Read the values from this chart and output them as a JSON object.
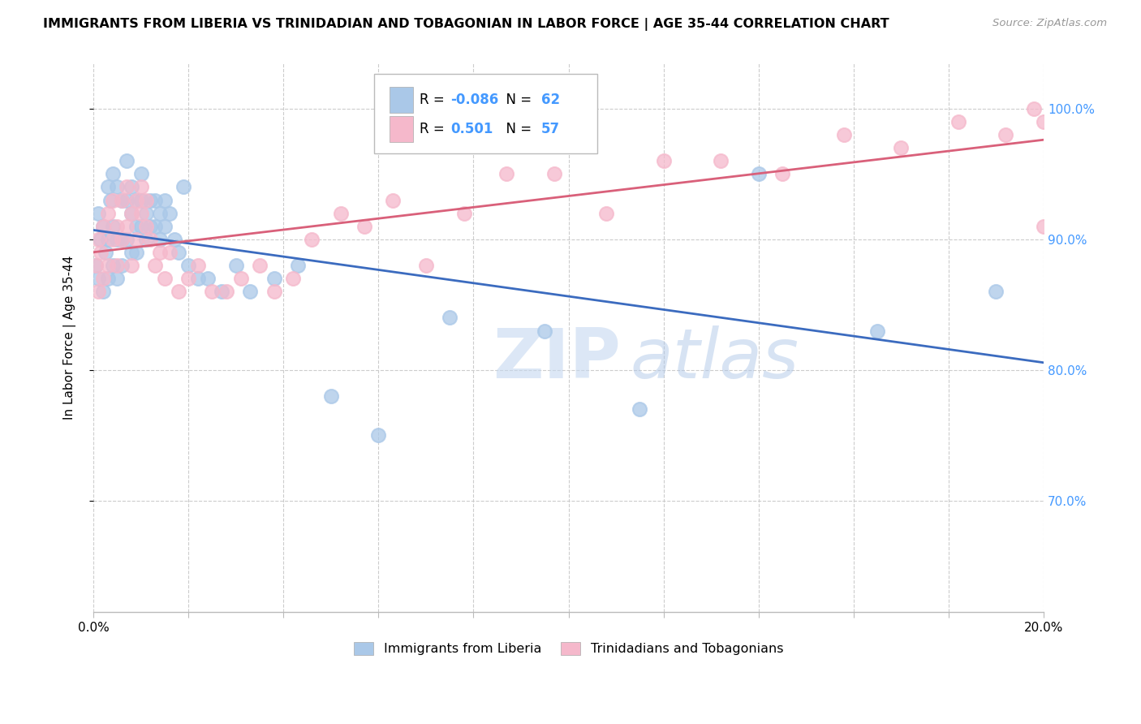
{
  "title": "IMMIGRANTS FROM LIBERIA VS TRINIDADIAN AND TOBAGONIAN IN LABOR FORCE | AGE 35-44 CORRELATION CHART",
  "source": "Source: ZipAtlas.com",
  "ylabel": "In Labor Force | Age 35-44",
  "xlim": [
    0.0,
    0.2
  ],
  "ylim": [
    0.615,
    1.035
  ],
  "yticks": [
    0.7,
    0.8,
    0.9,
    1.0
  ],
  "ytick_labels": [
    "70.0%",
    "80.0%",
    "90.0%",
    "100.0%"
  ],
  "xtick_positions": [
    0.0,
    0.02,
    0.04,
    0.06,
    0.08,
    0.1,
    0.12,
    0.14,
    0.16,
    0.18,
    0.2
  ],
  "xtick_labels": [
    "0.0%",
    "",
    "",
    "",
    "",
    "",
    "",
    "",
    "",
    "",
    "20.0%"
  ],
  "liberia_R": "-0.086",
  "liberia_N": "62",
  "trinidad_R": "0.501",
  "trinidad_N": "57",
  "legend_labels": [
    "Immigrants from Liberia",
    "Trinidadians and Tobagonians"
  ],
  "liberia_color": "#aac8e8",
  "trinidad_color": "#f5b8cb",
  "liberia_line_color": "#3b6bbf",
  "trinidad_line_color": "#d9607a",
  "watermark_zip": "ZIP",
  "watermark_atlas": "atlas",
  "liberia_scatter_x": [
    0.0005,
    0.001,
    0.001,
    0.0015,
    0.002,
    0.002,
    0.0025,
    0.003,
    0.003,
    0.003,
    0.0035,
    0.004,
    0.004,
    0.004,
    0.005,
    0.005,
    0.005,
    0.006,
    0.006,
    0.006,
    0.007,
    0.007,
    0.007,
    0.008,
    0.008,
    0.008,
    0.009,
    0.009,
    0.009,
    0.01,
    0.01,
    0.01,
    0.011,
    0.011,
    0.012,
    0.012,
    0.013,
    0.013,
    0.014,
    0.014,
    0.015,
    0.015,
    0.016,
    0.017,
    0.018,
    0.019,
    0.02,
    0.022,
    0.024,
    0.027,
    0.03,
    0.033,
    0.038,
    0.043,
    0.05,
    0.06,
    0.075,
    0.095,
    0.115,
    0.14,
    0.165,
    0.19
  ],
  "liberia_scatter_y": [
    0.88,
    0.92,
    0.87,
    0.9,
    0.91,
    0.86,
    0.89,
    0.94,
    0.9,
    0.87,
    0.93,
    0.95,
    0.91,
    0.88,
    0.94,
    0.9,
    0.87,
    0.93,
    0.9,
    0.88,
    0.96,
    0.93,
    0.9,
    0.94,
    0.92,
    0.89,
    0.93,
    0.91,
    0.89,
    0.95,
    0.93,
    0.91,
    0.92,
    0.9,
    0.93,
    0.91,
    0.93,
    0.91,
    0.92,
    0.9,
    0.93,
    0.91,
    0.92,
    0.9,
    0.89,
    0.94,
    0.88,
    0.87,
    0.87,
    0.86,
    0.88,
    0.86,
    0.87,
    0.88,
    0.78,
    0.75,
    0.84,
    0.83,
    0.77,
    0.95,
    0.83,
    0.86
  ],
  "trinidad_scatter_x": [
    0.0005,
    0.001,
    0.001,
    0.0015,
    0.002,
    0.002,
    0.003,
    0.003,
    0.004,
    0.004,
    0.005,
    0.005,
    0.006,
    0.006,
    0.007,
    0.007,
    0.008,
    0.008,
    0.009,
    0.009,
    0.01,
    0.01,
    0.011,
    0.011,
    0.012,
    0.013,
    0.014,
    0.015,
    0.016,
    0.018,
    0.02,
    0.022,
    0.025,
    0.028,
    0.031,
    0.035,
    0.038,
    0.042,
    0.046,
    0.052,
    0.057,
    0.063,
    0.07,
    0.078,
    0.087,
    0.097,
    0.108,
    0.12,
    0.132,
    0.145,
    0.158,
    0.17,
    0.182,
    0.192,
    0.198,
    0.2,
    0.2
  ],
  "trinidad_scatter_y": [
    0.88,
    0.9,
    0.86,
    0.89,
    0.91,
    0.87,
    0.92,
    0.88,
    0.9,
    0.93,
    0.91,
    0.88,
    0.93,
    0.9,
    0.94,
    0.91,
    0.92,
    0.88,
    0.93,
    0.9,
    0.94,
    0.92,
    0.93,
    0.91,
    0.9,
    0.88,
    0.89,
    0.87,
    0.89,
    0.86,
    0.87,
    0.88,
    0.86,
    0.86,
    0.87,
    0.88,
    0.86,
    0.87,
    0.9,
    0.92,
    0.91,
    0.93,
    0.88,
    0.92,
    0.95,
    0.95,
    0.92,
    0.96,
    0.96,
    0.95,
    0.98,
    0.97,
    0.99,
    0.98,
    1.0,
    0.99,
    0.91
  ]
}
